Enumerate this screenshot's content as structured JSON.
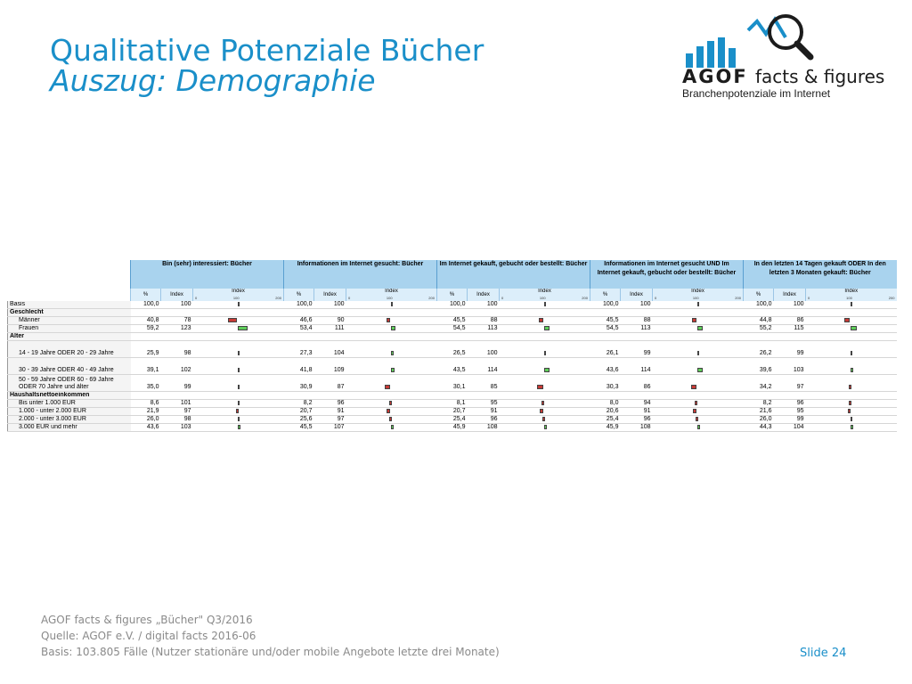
{
  "header": {
    "title": "Qualitative Potenziale Bücher",
    "subtitle": "Auszug: Demographie"
  },
  "logo": {
    "agof": "AGOF",
    "facts": "facts & figures",
    "tagline": "Branchenpotenziale im Internet"
  },
  "table": {
    "groups": [
      "Bin (sehr) interessiert: Bücher",
      "Informationen im Internet gesucht: Bücher",
      "Im Internet gekauft, gebucht oder bestellt: Bücher",
      "Informationen im Internet gesucht UND Im Internet gekauft, gebucht oder bestellt: Bücher",
      "In den letzten 14 Tagen gekauft ODER In den letzten 3 Monaten gekauft: Bücher"
    ],
    "sub_headers": {
      "pct": "%",
      "index": "Index",
      "chart": "Index",
      "axis": [
        "0",
        "100",
        "200"
      ]
    },
    "rows": [
      {
        "label": "Basis",
        "type": "basis",
        "cells": [
          [
            "100,0",
            "100"
          ],
          [
            "100,0",
            "100"
          ],
          [
            "100,0",
            "100"
          ],
          [
            "100,0",
            "100"
          ],
          [
            "100,0",
            "100"
          ]
        ]
      },
      {
        "label": "Geschlecht",
        "type": "section"
      },
      {
        "label": "Männer",
        "type": "item",
        "cells": [
          [
            "40,8",
            "78"
          ],
          [
            "46,6",
            "90"
          ],
          [
            "45,5",
            "88"
          ],
          [
            "45,5",
            "88"
          ],
          [
            "44,8",
            "86"
          ]
        ]
      },
      {
        "label": "Frauen",
        "type": "item",
        "cells": [
          [
            "59,2",
            "123"
          ],
          [
            "53,4",
            "111"
          ],
          [
            "54,5",
            "113"
          ],
          [
            "54,5",
            "113"
          ],
          [
            "55,2",
            "115"
          ]
        ]
      },
      {
        "label": "Alter",
        "type": "section"
      },
      {
        "label": "14 - 19 Jahre ODER 20 - 29 Jahre",
        "type": "tall",
        "cells": [
          [
            "25,9",
            "98"
          ],
          [
            "27,3",
            "104"
          ],
          [
            "26,5",
            "100"
          ],
          [
            "26,1",
            "99"
          ],
          [
            "26,2",
            "99"
          ]
        ]
      },
      {
        "label": "30 - 39 Jahre ODER 40 - 49 Jahre",
        "type": "tall",
        "cells": [
          [
            "39,1",
            "102"
          ],
          [
            "41,8",
            "109"
          ],
          [
            "43,5",
            "114"
          ],
          [
            "43,6",
            "114"
          ],
          [
            "39,6",
            "103"
          ]
        ]
      },
      {
        "label": "50 - 59 Jahre ODER 60 - 69 Jahre ODER 70 Jahre und älter",
        "type": "tall",
        "cells": [
          [
            "35,0",
            "99"
          ],
          [
            "30,9",
            "87"
          ],
          [
            "30,1",
            "85"
          ],
          [
            "30,3",
            "86"
          ],
          [
            "34,2",
            "97"
          ]
        ]
      },
      {
        "label": "Haushaltsnettoeinkommen",
        "type": "section"
      },
      {
        "label": "Bis unter 1.000 EUR",
        "type": "item",
        "cells": [
          [
            "8,6",
            "101"
          ],
          [
            "8,2",
            "96"
          ],
          [
            "8,1",
            "95"
          ],
          [
            "8,0",
            "94"
          ],
          [
            "8,2",
            "96"
          ]
        ]
      },
      {
        "label": "1.000 - unter 2.000 EUR",
        "type": "item",
        "cells": [
          [
            "21,9",
            "97"
          ],
          [
            "20,7",
            "91"
          ],
          [
            "20,7",
            "91"
          ],
          [
            "20,6",
            "91"
          ],
          [
            "21,6",
            "95"
          ]
        ]
      },
      {
        "label": "2.000 - unter 3.000 EUR",
        "type": "item",
        "cells": [
          [
            "26,0",
            "98"
          ],
          [
            "25,6",
            "97"
          ],
          [
            "25,4",
            "96"
          ],
          [
            "25,4",
            "96"
          ],
          [
            "26,0",
            "99"
          ]
        ]
      },
      {
        "label": "3.000 EUR und mehr",
        "type": "item",
        "cells": [
          [
            "43,6",
            "103"
          ],
          [
            "45,5",
            "107"
          ],
          [
            "45,9",
            "108"
          ],
          [
            "45,9",
            "108"
          ],
          [
            "44,3",
            "104"
          ]
        ]
      }
    ]
  },
  "footer": {
    "line1": "AGOF facts & figures „Bücher\" Q3/2016",
    "line2": "Quelle: AGOF e.V. / digital facts 2016-06",
    "line3": "Basis: 103.805 Fälle (Nutzer stationäre und/oder mobile Angebote letzte drei Monate)"
  },
  "slide_label": "Slide 24",
  "colors": {
    "accent": "#1a8fc9",
    "above": "#5fcf5a",
    "below": "#c73a36",
    "header": "#a9d3ee"
  }
}
